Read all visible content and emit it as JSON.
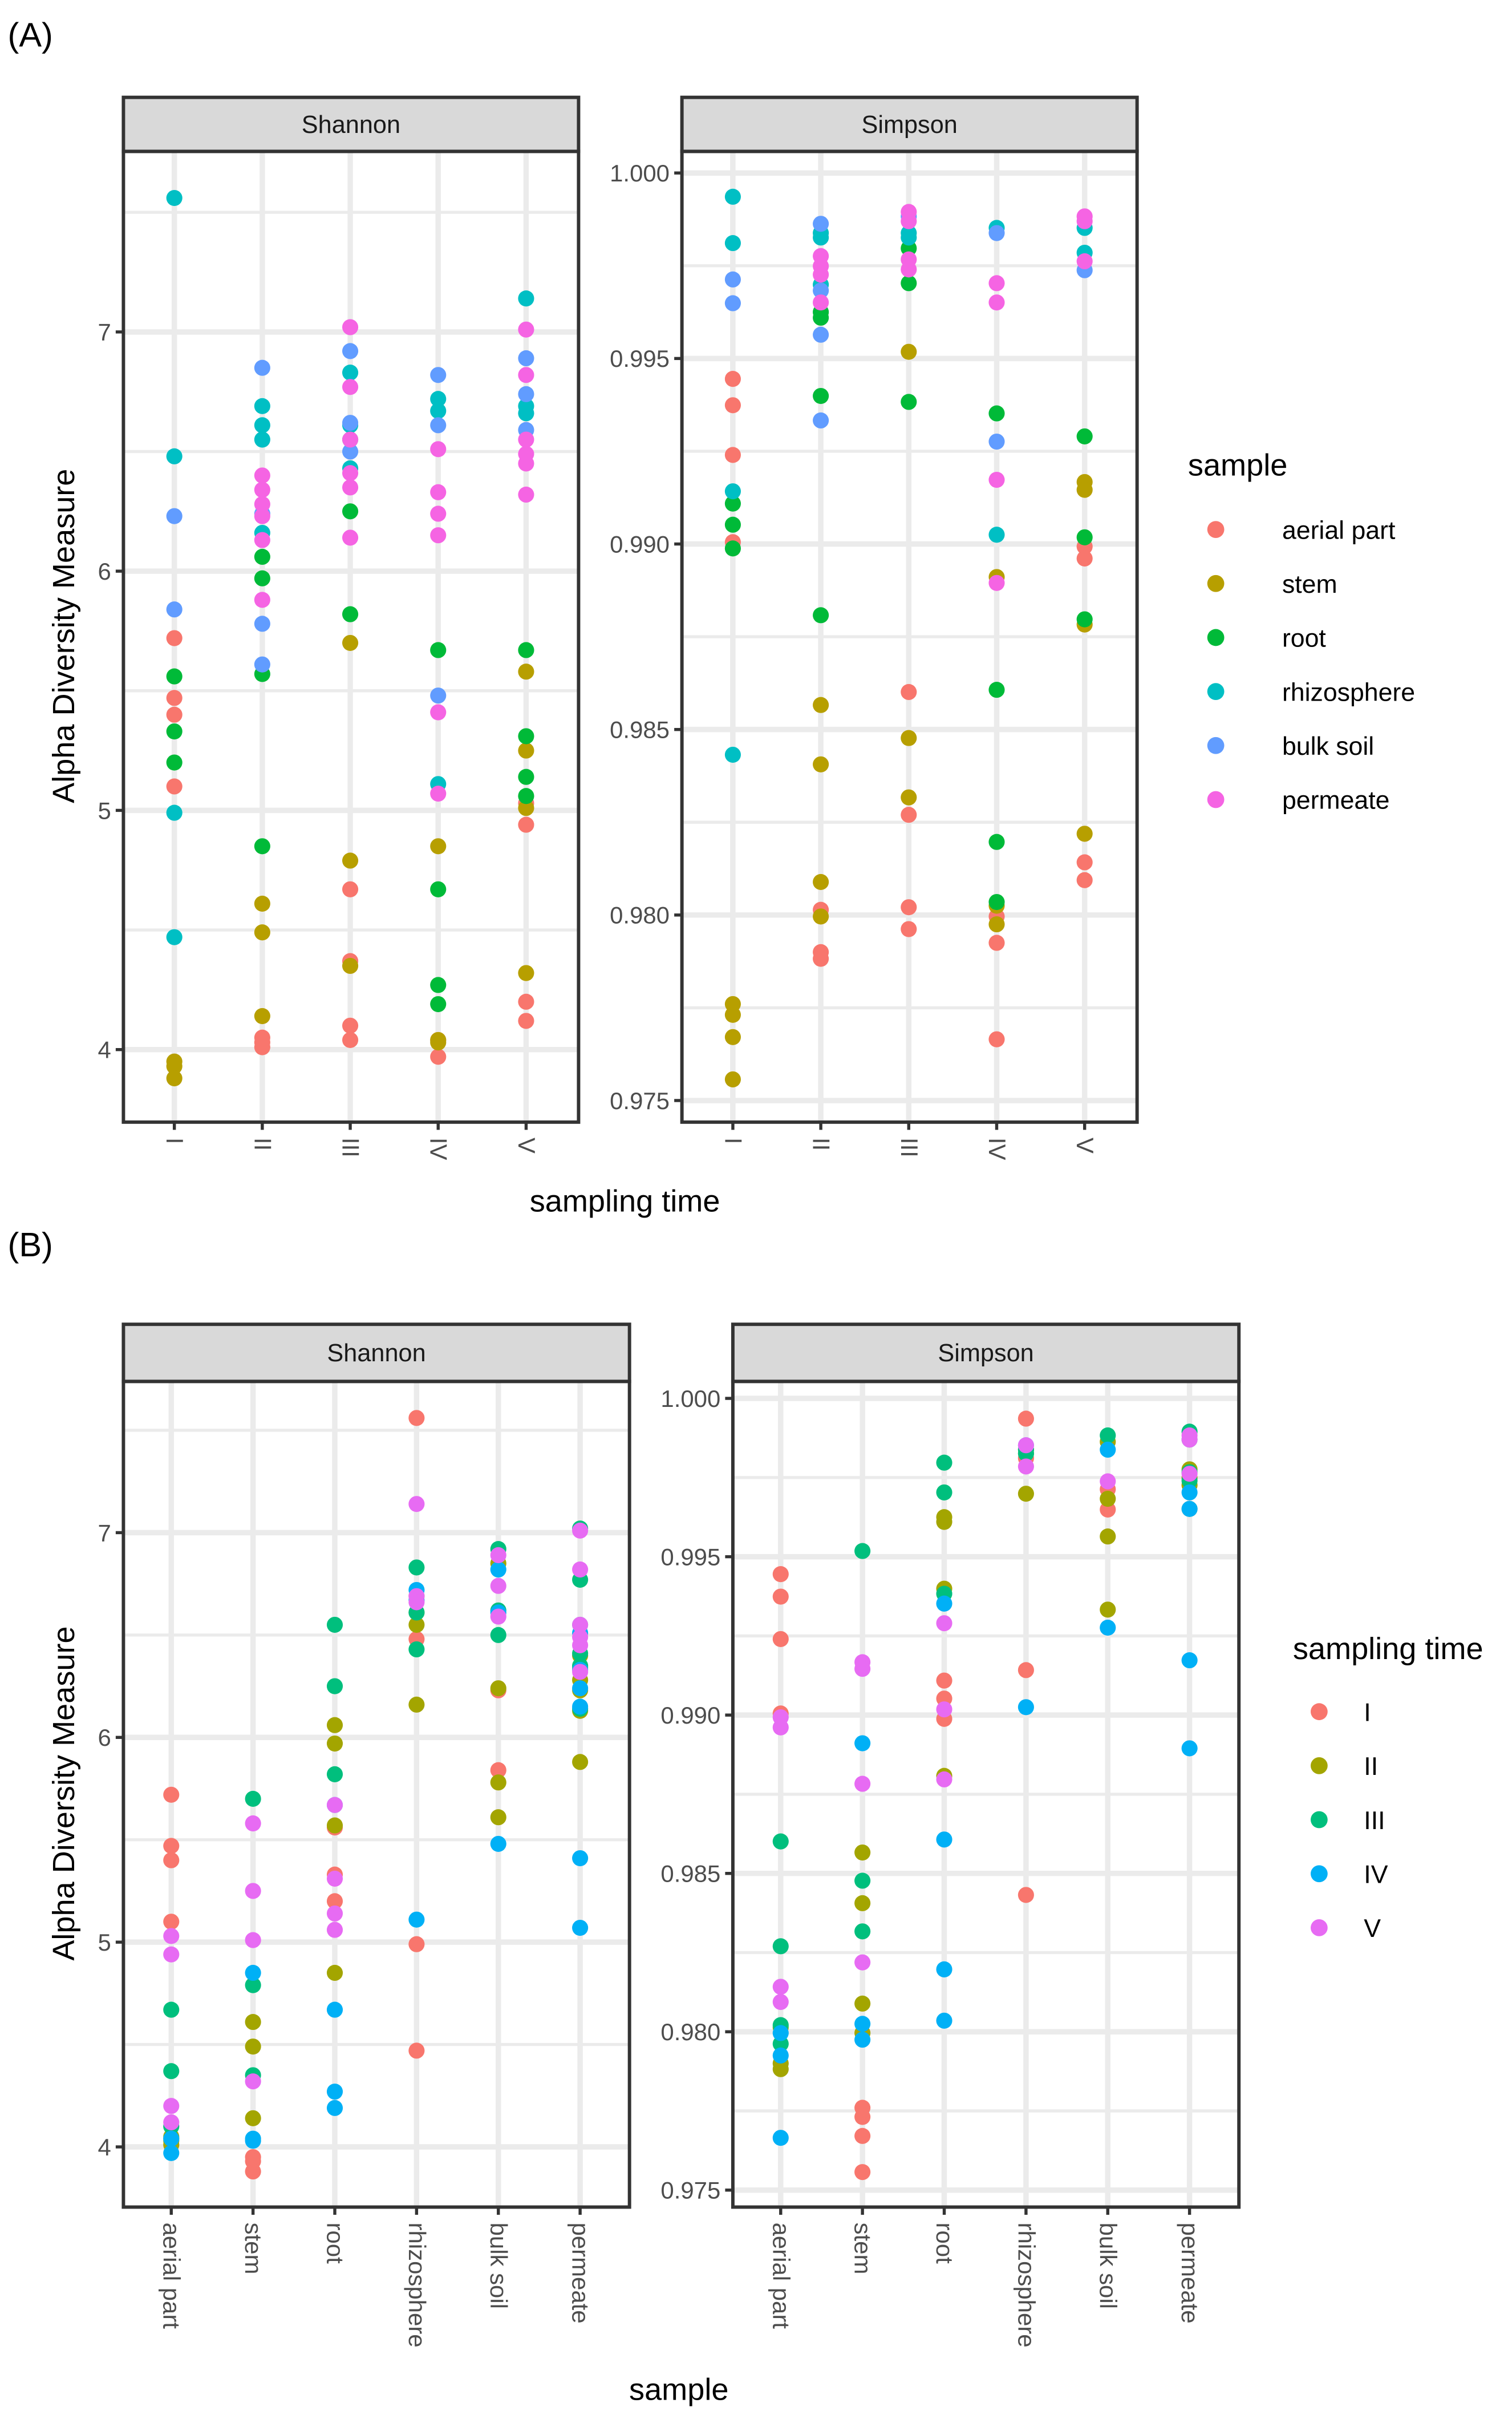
{
  "chart_data": {
    "type": "scatter",
    "panel_labels": [
      "(A)",
      "(B)"
    ],
    "y_title": "Alpha Diversity Measure",
    "samples": [
      "aerial part",
      "stem",
      "root",
      "rhizosphere",
      "bulk soil",
      "permeate"
    ],
    "times": [
      "I",
      "II",
      "III",
      "IV",
      "V"
    ],
    "sample_colors": [
      "#F8766D",
      "#B79F00",
      "#00BA38",
      "#00BFC4",
      "#619CFF",
      "#F564E3"
    ],
    "time_colors": [
      "#F8766D",
      "#A3A500",
      "#00BF7D",
      "#00B0F6",
      "#E76BF3"
    ],
    "metrics": {
      "Shannon": {
        "ticks": [
          "4",
          "5",
          "6",
          "7"
        ],
        "tick_values": [
          4,
          5,
          6,
          7
        ],
        "ylim": [
          3.7,
          7.75
        ],
        "values": [
          [
            [
              5.72,
              5.47,
              5.4,
              5.1
            ],
            [
              4.05,
              4.03,
              4.01
            ],
            [
              4.67,
              4.37,
              4.1,
              4.04
            ],
            [
              4.04,
              3.97
            ],
            [
              5.03,
              4.94,
              4.2,
              4.12
            ]
          ],
          [
            [
              3.95,
              3.93,
              3.88
            ],
            [
              4.61,
              4.49,
              4.14
            ],
            [
              5.7,
              4.79,
              4.35
            ],
            [
              4.85,
              4.04,
              4.03
            ],
            [
              5.58,
              5.25,
              5.01,
              4.32
            ]
          ],
          [
            [
              5.56,
              5.33,
              5.2
            ],
            [
              6.06,
              5.97,
              5.57,
              4.85
            ],
            [
              6.55,
              6.25,
              5.82
            ],
            [
              5.67,
              4.67,
              4.27,
              4.19
            ],
            [
              5.67,
              5.31,
              5.14,
              5.06
            ]
          ],
          [
            [
              7.56,
              6.48,
              4.99,
              4.47
            ],
            [
              6.69,
              6.61,
              6.55,
              6.16
            ],
            [
              6.83,
              6.61,
              6.43
            ],
            [
              6.72,
              6.67,
              5.11
            ],
            [
              7.14,
              6.69,
              6.66
            ]
          ],
          [
            [
              6.23,
              5.84
            ],
            [
              6.85,
              6.24,
              5.78,
              5.61
            ],
            [
              6.92,
              6.62,
              6.5
            ],
            [
              6.82,
              6.61,
              5.48
            ],
            [
              6.89,
              6.74,
              6.59
            ]
          ],
          [
            [],
            [
              6.4,
              6.34,
              6.28,
              6.23,
              6.13,
              5.88
            ],
            [
              7.02,
              6.77,
              6.55,
              6.41,
              6.35,
              6.14
            ],
            [
              6.51,
              6.33,
              6.24,
              6.15,
              5.41,
              5.07
            ],
            [
              7.01,
              6.82,
              6.55,
              6.49,
              6.45,
              6.32
            ]
          ]
        ]
      },
      "Simpson": {
        "ticks": [
          "0.975",
          "0.980",
          "0.985",
          "0.990",
          "0.995",
          "1.000"
        ],
        "tick_values": [
          0.975,
          0.98,
          0.985,
          0.99,
          0.995,
          1.0
        ],
        "ylim": [
          0.9744,
          1.0006
        ],
        "values": [
          [
            [
              0.99445,
              0.99374,
              0.9924,
              0.99005
            ],
            [
              0.98014,
              0.979,
              0.97882
            ],
            [
              0.98601,
              0.9827,
              0.98021,
              0.97962
            ],
            [
              0.97996,
              0.97925,
              0.97665
            ],
            [
              0.98993,
              0.98961,
              0.98142,
              0.98094
            ]
          ],
          [
            [
              0.9776,
              0.97731,
              0.97671,
              0.97557
            ],
            [
              0.98566,
              0.98406,
              0.98089,
              0.97996
            ],
            [
              0.99518,
              0.98477,
              0.98317
            ],
            [
              0.98911,
              0.98025,
              0.97975
            ],
            [
              0.99167,
              0.99146,
              0.98783,
              0.98219
            ]
          ],
          [
            [
              0.99109,
              0.99052,
              0.98988
            ],
            [
              0.99625,
              0.9961,
              0.99399,
              0.98808
            ],
            [
              0.99797,
              0.99703,
              0.99383
            ],
            [
              0.99352,
              0.98607,
              0.98197,
              0.98035
            ],
            [
              0.9929,
              0.99018,
              0.98797
            ]
          ],
          [
            [
              0.99936,
              0.99811,
              0.99142,
              0.98432
            ],
            [
              0.99838,
              0.99826,
              0.99699
            ],
            [
              0.99838,
              0.99826
            ],
            [
              0.99852,
              0.99025
            ],
            [
              0.99852,
              0.99785
            ]
          ],
          [
            [
              0.99713,
              0.99649
            ],
            [
              0.99863,
              0.99683,
              0.99564,
              0.99333
            ],
            [
              0.99883
            ],
            [
              0.99838,
              0.99276
            ],
            [
              0.99738
            ]
          ],
          [
            [],
            [
              0.99776,
              0.99749,
              0.99726,
              0.99651
            ],
            [
              0.99895,
              0.9987,
              0.99767,
              0.9974
            ],
            [
              0.99703,
              0.99651,
              0.99173,
              0.98895
            ],
            [
              0.99883,
              0.9987,
              0.99762
            ]
          ]
        ]
      }
    },
    "panel_A": {
      "x_title": "sampling time",
      "group_by": "times",
      "color_by": "samples",
      "legend_title": "sample",
      "legend_placement": "right"
    },
    "panel_B": {
      "x_title": "sample",
      "group_by": "samples",
      "color_by": "times",
      "legend_title": "sampling time",
      "legend_placement": "right"
    }
  }
}
